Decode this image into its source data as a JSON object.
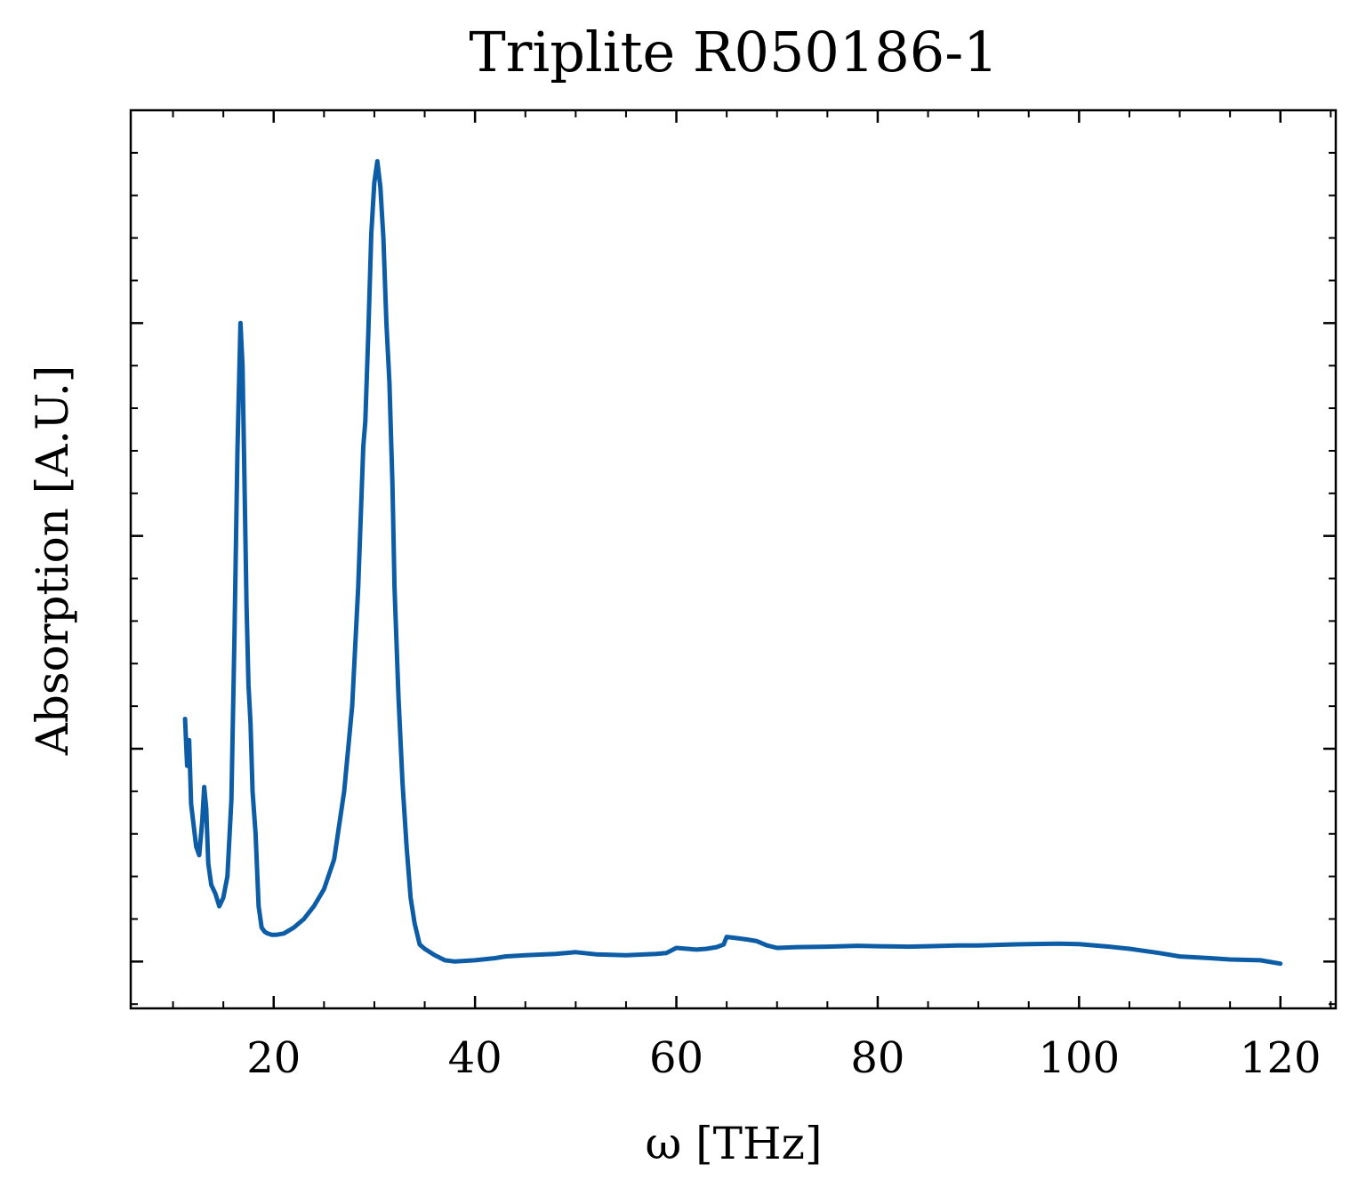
{
  "chart_data": {
    "type": "line",
    "title": "Triplite R050186-1",
    "xlabel": "ω [THz]",
    "ylabel": "Absorption [A.U.]",
    "xlim": [
      5.8,
      125.5
    ],
    "ylim": [
      -0.11,
      2.0
    ],
    "x_ticks": [
      20,
      40,
      60,
      80,
      100,
      120
    ],
    "x_minor_step": 5,
    "y_ticks": [
      0.0,
      0.5,
      1.0,
      1.5
    ],
    "y_minor_step": 0.1,
    "y_tick_labels_visible": false,
    "grid": false,
    "color": "#0c5da5",
    "series": [
      {
        "x": [
          11.2,
          11.4,
          11.6,
          11.8,
          12.0,
          12.3,
          12.6,
          12.9,
          13.1,
          13.3,
          13.5,
          13.8,
          14.2,
          14.6,
          15.0,
          15.4,
          15.8,
          16.1,
          16.4,
          16.7,
          16.9,
          17.1,
          17.3,
          17.5,
          17.7,
          17.9,
          18.2,
          18.5,
          18.8,
          19.1,
          19.4,
          19.8,
          20.3,
          21.0,
          22.0,
          23.0,
          24.0,
          25.0,
          26.0,
          27.0,
          27.8,
          28.4,
          28.9,
          29.1,
          29.4,
          29.7,
          30.0,
          30.3,
          30.6,
          30.9,
          31.2,
          31.5,
          31.8,
          32.0,
          32.4,
          32.8,
          33.2,
          33.6,
          34.0,
          34.5,
          35.0,
          36.0,
          37.0,
          38.0,
          40.0,
          42.0,
          43.0,
          45.0,
          48.0,
          50.0,
          52.0,
          55.0,
          58.0,
          59.0,
          60.0,
          62.0,
          63.0,
          64.0,
          64.7,
          65.0,
          66.0,
          67.0,
          68.0,
          69.0,
          70.0,
          72.0,
          75.0,
          78.0,
          80.0,
          83.0,
          85.0,
          88.0,
          90.0,
          93.0,
          95.0,
          98.0,
          100.0,
          103.0,
          105.0,
          108.0,
          110.0,
          113.0,
          115.0,
          118.0,
          120.0
        ],
        "y": [
          0.57,
          0.46,
          0.52,
          0.37,
          0.33,
          0.27,
          0.25,
          0.33,
          0.41,
          0.36,
          0.23,
          0.18,
          0.16,
          0.13,
          0.15,
          0.2,
          0.38,
          0.76,
          1.2,
          1.5,
          1.4,
          1.13,
          0.84,
          0.65,
          0.56,
          0.4,
          0.3,
          0.13,
          0.08,
          0.07,
          0.066,
          0.063,
          0.063,
          0.066,
          0.08,
          0.1,
          0.13,
          0.17,
          0.24,
          0.4,
          0.6,
          0.88,
          1.21,
          1.27,
          1.48,
          1.71,
          1.83,
          1.88,
          1.82,
          1.7,
          1.5,
          1.36,
          1.12,
          0.88,
          0.62,
          0.42,
          0.27,
          0.15,
          0.09,
          0.04,
          0.03,
          0.015,
          0.003,
          0.0,
          0.003,
          0.008,
          0.012,
          0.015,
          0.018,
          0.022,
          0.017,
          0.015,
          0.018,
          0.02,
          0.032,
          0.028,
          0.03,
          0.034,
          0.04,
          0.058,
          0.055,
          0.052,
          0.048,
          0.038,
          0.032,
          0.034,
          0.035,
          0.037,
          0.036,
          0.035,
          0.036,
          0.038,
          0.038,
          0.04,
          0.041,
          0.042,
          0.041,
          0.035,
          0.03,
          0.02,
          0.012,
          0.008,
          0.005,
          0.003,
          -0.005
        ]
      }
    ]
  }
}
